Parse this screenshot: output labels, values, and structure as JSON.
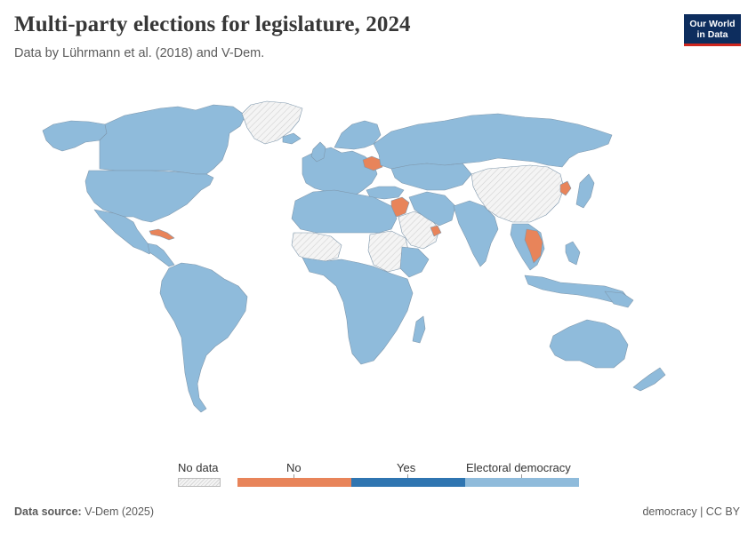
{
  "header": {
    "title": "Multi-party elections for legislature, 2024",
    "subtitle": "Data by Lührmann et al. (2018) and V-Dem."
  },
  "logo": {
    "line1": "Our World",
    "line2": "in Data"
  },
  "colors": {
    "electoral_democracy": "#8fbbdb",
    "yes": "#2f75b1",
    "no": "#e8845a",
    "no_data": "#eeeeee",
    "country_border": "#7f98ad"
  },
  "legend": {
    "no_data_label": "No data",
    "no_label": "No",
    "yes_label": "Yes",
    "electoral_democracy_label": "Electoral democracy"
  },
  "footer": {
    "source_label": "Data source:",
    "source_value": "V-Dem (2025)",
    "right_text": "democracy | CC BY"
  }
}
